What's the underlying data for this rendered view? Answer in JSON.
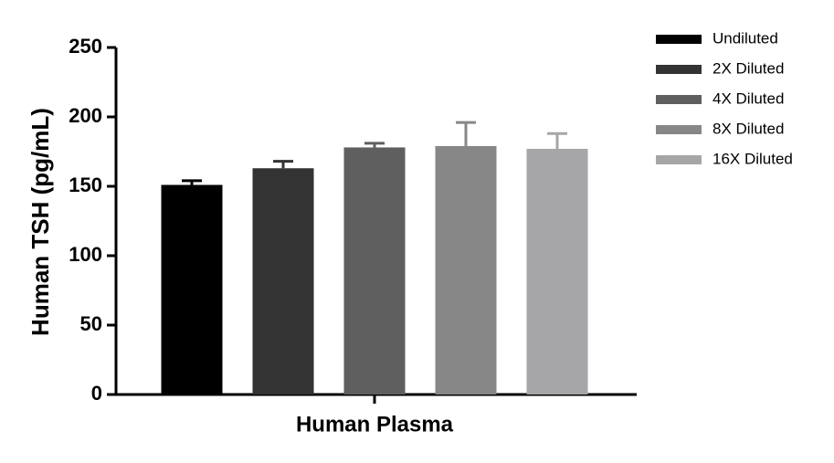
{
  "chart_data": {
    "type": "bar",
    "ylabel": "Human TSH (pg/mL)",
    "categories": [
      "Human Plasma"
    ],
    "series": [
      {
        "name": "Undiluted",
        "color": "#000000",
        "values": [
          151
        ],
        "errors": [
          3
        ]
      },
      {
        "name": "2X Diluted",
        "color": "#333333",
        "values": [
          163
        ],
        "errors": [
          5
        ]
      },
      {
        "name": "4X Diluted",
        "color": "#5f5f5f",
        "values": [
          178
        ],
        "errors": [
          3
        ]
      },
      {
        "name": "8X Diluted",
        "color": "#878787",
        "values": [
          179
        ],
        "errors": [
          17
        ]
      },
      {
        "name": "16X Diluted",
        "color": "#a6a6a8",
        "values": [
          177
        ],
        "errors": [
          11
        ]
      }
    ],
    "ylim": [
      0,
      250
    ],
    "yticks": [
      0,
      50,
      100,
      150,
      200,
      250
    ],
    "legend": "top-right",
    "grid": false
  }
}
